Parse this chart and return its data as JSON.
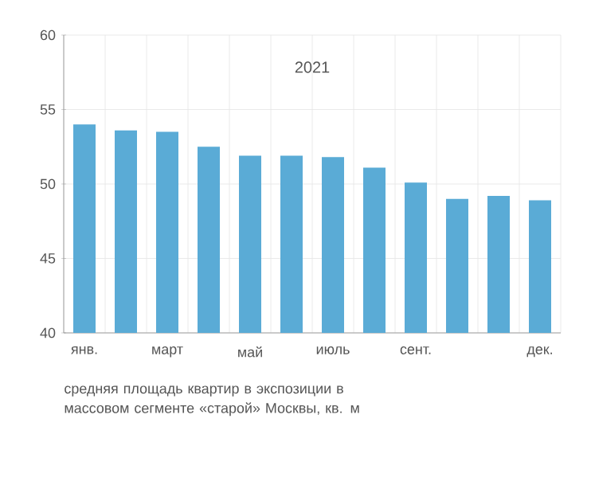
{
  "chart_data": {
    "type": "bar",
    "title": "2021",
    "categories": [
      "янв.",
      null,
      "март",
      null,
      "май",
      null,
      "июль",
      null,
      "сент.",
      null,
      null,
      "дек."
    ],
    "values": [
      54.0,
      53.6,
      53.5,
      52.5,
      51.9,
      51.9,
      51.8,
      51.1,
      50.1,
      49.0,
      49.2,
      48.9
    ],
    "color": "#5aabd6",
    "ylim": [
      40,
      60
    ],
    "yticks": [
      40,
      45,
      50,
      55,
      60
    ],
    "grid": true,
    "annotations": [
      "средняя площадь квартир в экспозиции в массовом сегменте «старой» Москвы, кв. м"
    ]
  }
}
